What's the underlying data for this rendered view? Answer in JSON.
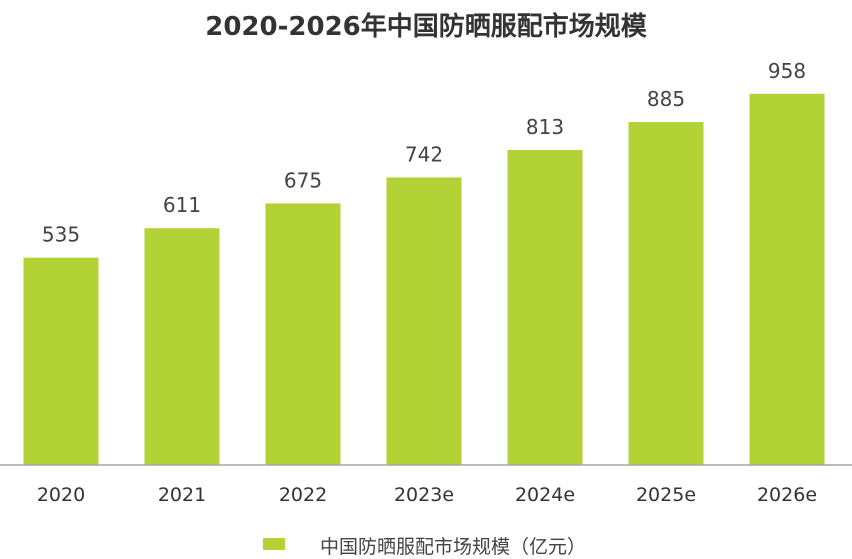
{
  "chart_data": {
    "type": "bar",
    "title": "2020-2026年中国防晒服配市场规模",
    "categories": [
      "2020",
      "2021",
      "2022",
      "2023e",
      "2024e",
      "2025e",
      "2026e"
    ],
    "series": [
      {
        "name": "中国防晒服配市场规模（亿元）",
        "values": [
          535,
          611,
          675,
          742,
          813,
          885,
          958
        ]
      }
    ],
    "xlabel": "",
    "ylabel": "",
    "ylim": [
      0,
      1200
    ],
    "grid": false,
    "legend_position": "bottom",
    "bar_color": "#b2d235",
    "axis_color": "#a6a6a6"
  }
}
